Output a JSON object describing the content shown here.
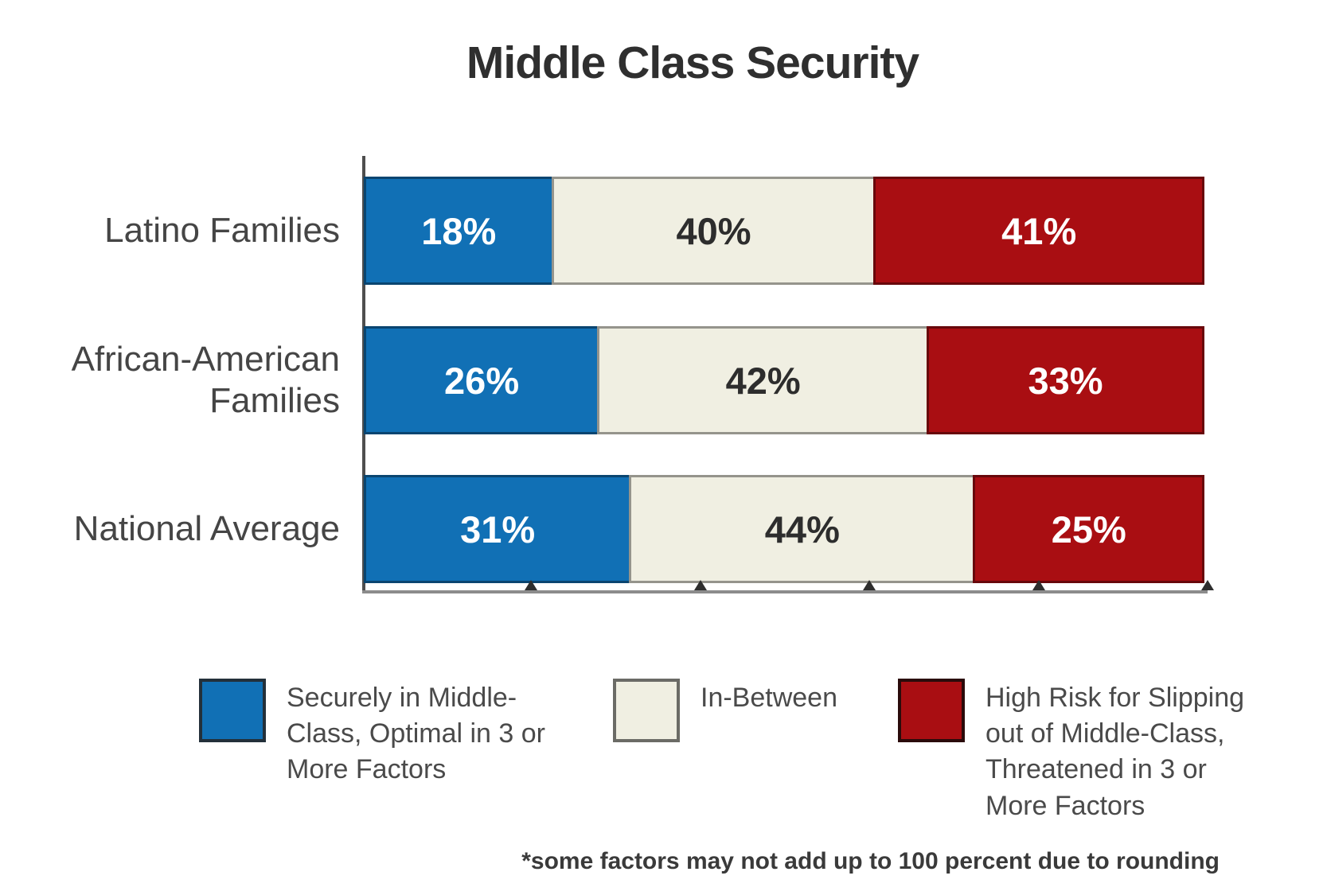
{
  "chart_data": {
    "type": "bar",
    "orientation": "horizontal",
    "stacked": true,
    "title": "Middle Class Security",
    "categories": [
      "Latino Families",
      "African-American Families",
      "National Average"
    ],
    "series": [
      {
        "name": "Securely in Middle-Class, Optimal in 3 or More Factors",
        "color": "#1170b5",
        "swatch_border": "#23303a",
        "label_color": "#ffffff",
        "values": [
          18,
          26,
          31
        ],
        "labels": [
          "18%",
          "26%",
          "31%"
        ]
      },
      {
        "name": "In-Between",
        "color": "#f0efe2",
        "swatch_border": "#6b6b66",
        "label_color": "#2d2d2d",
        "values": [
          40,
          42,
          44
        ],
        "labels": [
          "40%",
          "42%",
          "44%"
        ]
      },
      {
        "name": "High Risk for Slipping out of Middle-Class, Threatened in 3 or More Factors",
        "color": "#a90e12",
        "swatch_border": "#2a0b0b",
        "label_color": "#ffffff",
        "values": [
          41,
          33,
          25
        ],
        "labels": [
          "41%",
          "33%",
          "25%"
        ]
      }
    ],
    "x_axis": {
      "range_percent": [
        0,
        100
      ],
      "tick_positions_percent": [
        20,
        40,
        60,
        80,
        100
      ],
      "tick_labels": []
    },
    "grid": false,
    "legend_position": "bottom",
    "footnote": "*some factors may not add up to 100 percent due to rounding"
  }
}
